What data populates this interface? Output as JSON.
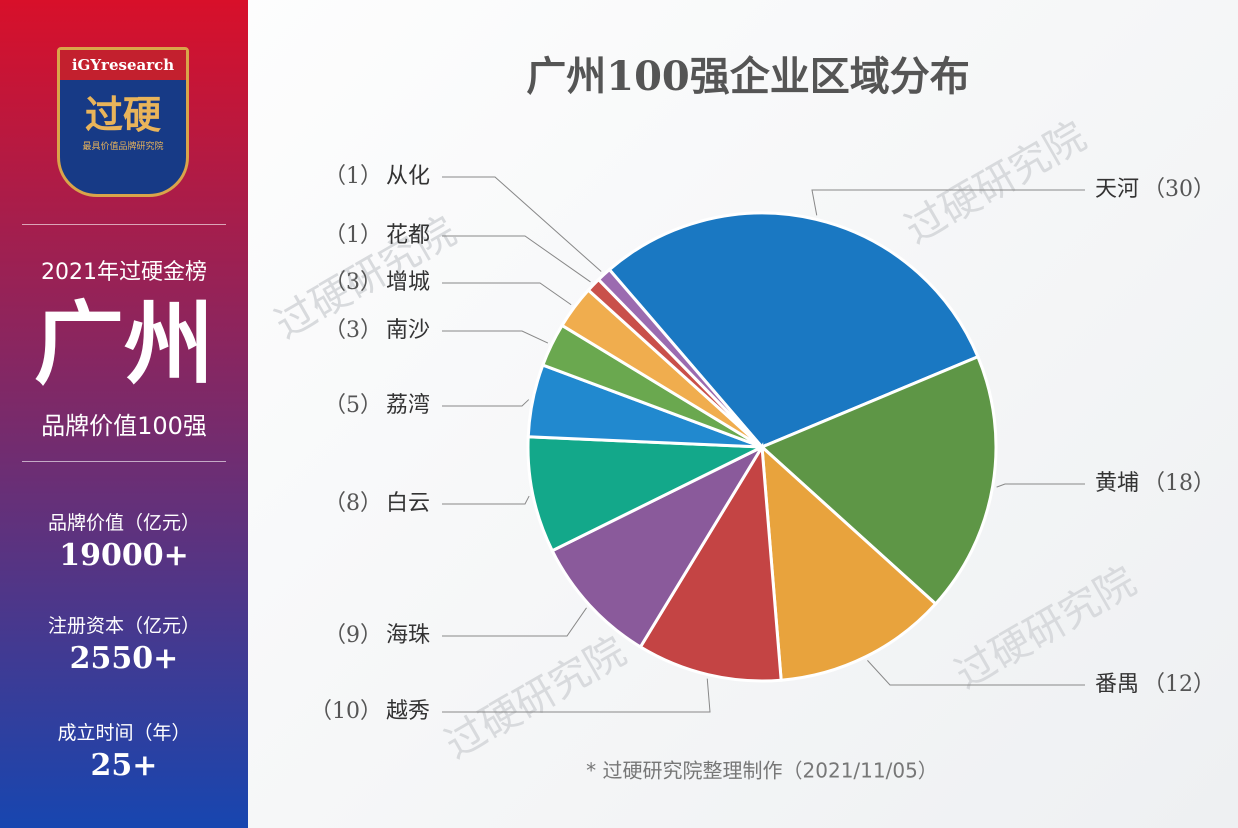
{
  "sidebar": {
    "logo_brand": "iGYresearch",
    "logo_name": "过硬",
    "logo_tagline": "最具价值品牌研究院",
    "list_name": "2021年过硬金榜",
    "city": "广州",
    "list_title": "品牌价值100强",
    "stats": [
      {
        "label": "品牌价值（亿元）",
        "value": "19000+"
      },
      {
        "label": "注册资本（亿元）",
        "value": "2550+"
      },
      {
        "label": "成立时间（年）",
        "value": "25+"
      }
    ]
  },
  "watermark": "过硬研究院",
  "footnote": "* 过硬研究院整理制作（2021/11/05）",
  "chart_data": {
    "type": "pie",
    "title": "广州100强企业区域分布",
    "categories": [
      "天河",
      "黄埔",
      "番禺",
      "越秀",
      "海珠",
      "白云",
      "荔湾",
      "南沙",
      "增城",
      "花都",
      "从化"
    ],
    "values": [
      30,
      18,
      12,
      10,
      9,
      8,
      5,
      3,
      3,
      1,
      1
    ],
    "value_labels": [
      "（30）",
      "（18）",
      "（12）",
      "（10）",
      "（9）",
      "（8）",
      "（5）",
      "（3）",
      "（3）",
      "（1）",
      "（1）"
    ],
    "colors": [
      "#1a78c2",
      "#5e9646",
      "#e8a33d",
      "#c44444",
      "#8a5a9b",
      "#13a88a",
      "#2189cf",
      "#6aa84f",
      "#f0ad4e",
      "#c9504a",
      "#9b6bb0"
    ]
  }
}
